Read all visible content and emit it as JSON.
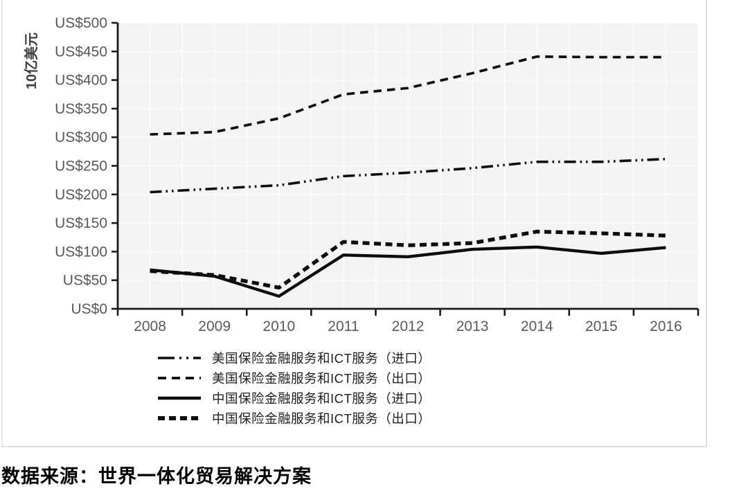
{
  "chart_data": {
    "type": "line",
    "title": "",
    "xlabel": "",
    "ylabel": "10亿美元",
    "categories": [
      "2008",
      "2009",
      "2010",
      "2011",
      "2012",
      "2013",
      "2014",
      "2015",
      "2016"
    ],
    "series": [
      {
        "name": "美国保险金融服务和ICT服务（进口）",
        "style": "dash-dot-dot",
        "values": [
          204,
          210,
          216,
          232,
          238,
          246,
          257,
          257,
          262
        ]
      },
      {
        "name": "美国保险金融服务和ICT服务（出口）",
        "style": "dashed",
        "values": [
          305,
          309,
          333,
          375,
          386,
          412,
          441,
          440,
          440
        ]
      },
      {
        "name": "中国保险金融服务和ICT服务（进口）",
        "style": "solid",
        "values": [
          68,
          57,
          22,
          94,
          91,
          104,
          108,
          97,
          107
        ]
      },
      {
        "name": "中国保险金融服务和ICT服务（出口）",
        "style": "bold-dashed",
        "values": [
          66,
          59,
          37,
          117,
          111,
          115,
          135,
          132,
          128
        ]
      }
    ],
    "ylim": [
      0,
      500
    ],
    "y_tick_step": 50,
    "y_tick_labels": [
      "US$0",
      "US$50",
      "US$100",
      "US$150",
      "US$200",
      "US$250",
      "US$300",
      "US$350",
      "US$400",
      "US$450",
      "US$500"
    ],
    "grid": true,
    "legend_position": "bottom-left",
    "line_color": "#0d0d0d",
    "plot_bg_color": "#f3f3f3",
    "gridline_color": "#fdfdfd",
    "axis_color": "#1a1a1a",
    "tick_label_color": "#595959"
  },
  "caption": {
    "source_note": "数据来源：世界一体化贸易解决方案"
  }
}
